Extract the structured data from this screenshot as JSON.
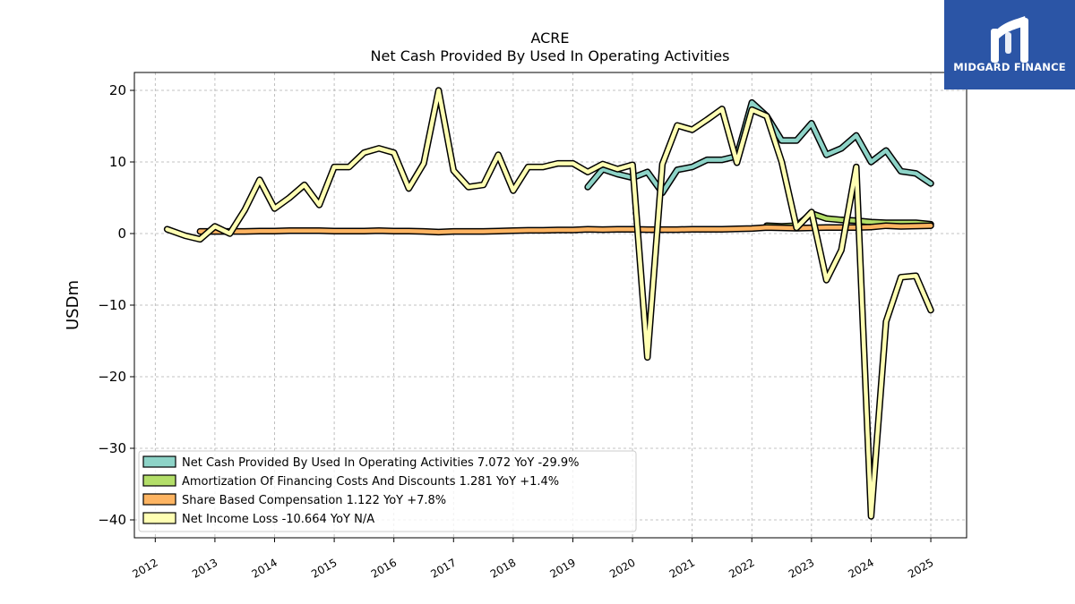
{
  "brand": {
    "name": "MIDGARD FINANCE",
    "background_color": "#2b55a6",
    "icon": "midgard-logo-icon"
  },
  "chart_data": {
    "type": "line",
    "title": "ACRE",
    "subtitle": "Net Cash Provided By Used In Operating Activities",
    "xlabel": "",
    "ylabel": "USDm",
    "ylim": [
      -42.5,
      22.5
    ],
    "xlim": [
      2011.65,
      2025.6
    ],
    "yticks": [
      20,
      10,
      0,
      -10,
      -20,
      -30,
      -40
    ],
    "ytick_labels": [
      "20",
      "10",
      "0",
      "−10",
      "−20",
      "−30",
      "−40"
    ],
    "xticks": [
      2012,
      2013,
      2014,
      2015,
      2016,
      2017,
      2018,
      2019,
      2020,
      2021,
      2022,
      2023,
      2024,
      2025
    ],
    "xtick_labels": [
      "2012",
      "2013",
      "2014",
      "2015",
      "2016",
      "2017",
      "2018",
      "2019",
      "2020",
      "2021",
      "2022",
      "2023",
      "2024",
      "2025"
    ],
    "grid": true,
    "legend_position": "lower-left",
    "series": [
      {
        "name": "Net Cash Provided By Used In Operating Activities",
        "legend_label": "Net Cash Provided By Used In Operating Activities  7.072 YoY -29.9%",
        "color": "#8dd3c7",
        "x": [
          2019.25,
          2019.5,
          2019.75,
          2020.0,
          2020.25,
          2020.5,
          2020.75,
          2021.0,
          2021.25,
          2021.5,
          2021.75,
          2022.0,
          2022.25,
          2022.5,
          2022.75,
          2023.0,
          2023.25,
          2023.5,
          2023.75,
          2024.0,
          2024.25,
          2024.5,
          2024.75,
          2025.0
        ],
        "y": [
          6.5,
          9.0,
          8.3,
          7.8,
          8.6,
          5.7,
          8.9,
          9.3,
          10.3,
          10.3,
          10.8,
          18.3,
          16.4,
          13.0,
          13.0,
          15.4,
          11.0,
          11.9,
          13.7,
          10.0,
          11.6,
          8.7,
          8.4,
          7.0
        ]
      },
      {
        "name": "Amortization Of Financing Costs And Discounts",
        "legend_label": "Amortization Of Financing Costs And Discounts  1.281 YoY +1.4%",
        "color": "#b3de69",
        "x": [
          2022.25,
          2022.5,
          2022.75,
          2023.0,
          2023.25,
          2023.5,
          2023.75,
          2024.0,
          2024.25,
          2024.5,
          2024.75,
          2025.0
        ],
        "y": [
          1.1,
          1.0,
          1.1,
          2.8,
          2.1,
          1.9,
          1.8,
          1.6,
          1.5,
          1.5,
          1.5,
          1.3
        ]
      },
      {
        "name": "Share Based Compensation",
        "legend_label": "Share Based Compensation  1.122 YoY +7.8%",
        "color": "#fdb462",
        "x": [
          2012.75,
          2013.0,
          2013.25,
          2013.5,
          2013.75,
          2014.0,
          2014.25,
          2014.5,
          2014.75,
          2015.0,
          2015.25,
          2015.5,
          2015.75,
          2016.0,
          2016.25,
          2016.5,
          2016.75,
          2017.0,
          2017.25,
          2017.5,
          2017.75,
          2018.0,
          2018.25,
          2018.5,
          2018.75,
          2019.0,
          2019.25,
          2019.5,
          2019.75,
          2020.0,
          2020.25,
          2020.5,
          2020.75,
          2021.0,
          2021.25,
          2021.5,
          2021.75,
          2022.0,
          2022.25,
          2022.5,
          2022.75,
          2023.0,
          2023.25,
          2023.5,
          2023.75,
          2024.0,
          2024.25,
          2024.5,
          2024.75,
          2025.0
        ],
        "y": [
          0.3,
          0.3,
          0.3,
          0.3,
          0.35,
          0.35,
          0.4,
          0.4,
          0.4,
          0.35,
          0.35,
          0.35,
          0.4,
          0.35,
          0.35,
          0.3,
          0.2,
          0.3,
          0.3,
          0.3,
          0.35,
          0.4,
          0.45,
          0.45,
          0.5,
          0.5,
          0.6,
          0.55,
          0.6,
          0.6,
          0.55,
          0.55,
          0.55,
          0.6,
          0.6,
          0.6,
          0.65,
          0.7,
          0.85,
          0.8,
          0.75,
          0.8,
          0.85,
          0.85,
          0.85,
          0.9,
          1.1,
          1.0,
          1.05,
          1.1
        ]
      },
      {
        "name": "Net Income Loss",
        "legend_label": "Net Income Loss  -10.664 YoY N/A",
        "color": "#ffffb3",
        "x": [
          2012.2,
          2012.5,
          2012.75,
          2013.0,
          2013.25,
          2013.5,
          2013.75,
          2014.0,
          2014.25,
          2014.5,
          2014.75,
          2015.0,
          2015.25,
          2015.5,
          2015.75,
          2016.0,
          2016.25,
          2016.5,
          2016.75,
          2017.0,
          2017.25,
          2017.5,
          2017.75,
          2018.0,
          2018.25,
          2018.5,
          2018.75,
          2019.0,
          2019.25,
          2019.5,
          2019.75,
          2020.0,
          2020.25,
          2020.5,
          2020.75,
          2021.0,
          2021.25,
          2021.5,
          2021.75,
          2022.0,
          2022.25,
          2022.5,
          2022.75,
          2023.0,
          2023.25,
          2023.5,
          2023.75,
          2024.0,
          2024.25,
          2024.5,
          2024.75,
          2025.0
        ],
        "y": [
          0.6,
          -0.3,
          -0.8,
          1.0,
          0.0,
          3.3,
          7.5,
          3.5,
          5.0,
          6.8,
          4.0,
          9.3,
          9.3,
          11.3,
          11.9,
          11.3,
          6.3,
          9.8,
          20.0,
          8.8,
          6.5,
          6.8,
          11.0,
          6.0,
          9.3,
          9.3,
          9.8,
          9.8,
          8.6,
          9.7,
          9.0,
          9.6,
          -17.3,
          9.7,
          15.1,
          14.5,
          15.9,
          17.4,
          9.9,
          17.3,
          16.4,
          10.0,
          0.8,
          3.0,
          -6.5,
          -2.3,
          9.3,
          -39.5,
          -12.3,
          -6.1,
          -5.9,
          -10.7
        ]
      }
    ]
  }
}
